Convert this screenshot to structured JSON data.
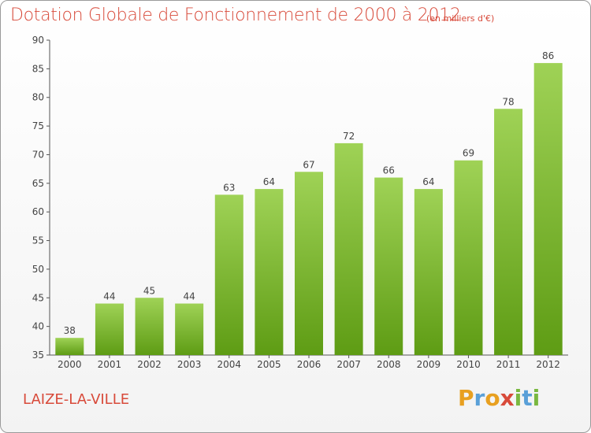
{
  "title": "Dotation Globale de Fonctionnement de 2000 à 2012",
  "subtitle": "(en milliers d'€)",
  "commune": "LAIZE-LA-VILLE",
  "logo": {
    "letters": [
      "P",
      "r",
      "o",
      "x",
      "i",
      "t",
      "i"
    ],
    "colors": [
      "#e8a020",
      "#5aa0d8",
      "#e8a020",
      "#d84a3a",
      "#7ab840",
      "#5aa0d8",
      "#7ab840"
    ]
  },
  "colors": {
    "title": "#d84a3a",
    "bar_top": "#9fd256",
    "bar_bottom": "#5e9c14",
    "axis": "#555555",
    "grid": "#dddddd"
  },
  "chart_data": {
    "type": "bar",
    "categories": [
      "2000",
      "2001",
      "2002",
      "2003",
      "2004",
      "2005",
      "2006",
      "2007",
      "2008",
      "2009",
      "2010",
      "2011",
      "2012"
    ],
    "values": [
      38,
      44,
      45,
      44,
      63,
      64,
      67,
      72,
      66,
      64,
      69,
      78,
      86
    ],
    "ylim": [
      35,
      90
    ],
    "yticks": [
      35,
      40,
      45,
      50,
      55,
      60,
      65,
      70,
      75,
      80,
      85,
      90
    ],
    "grid": false,
    "legend": "none"
  }
}
